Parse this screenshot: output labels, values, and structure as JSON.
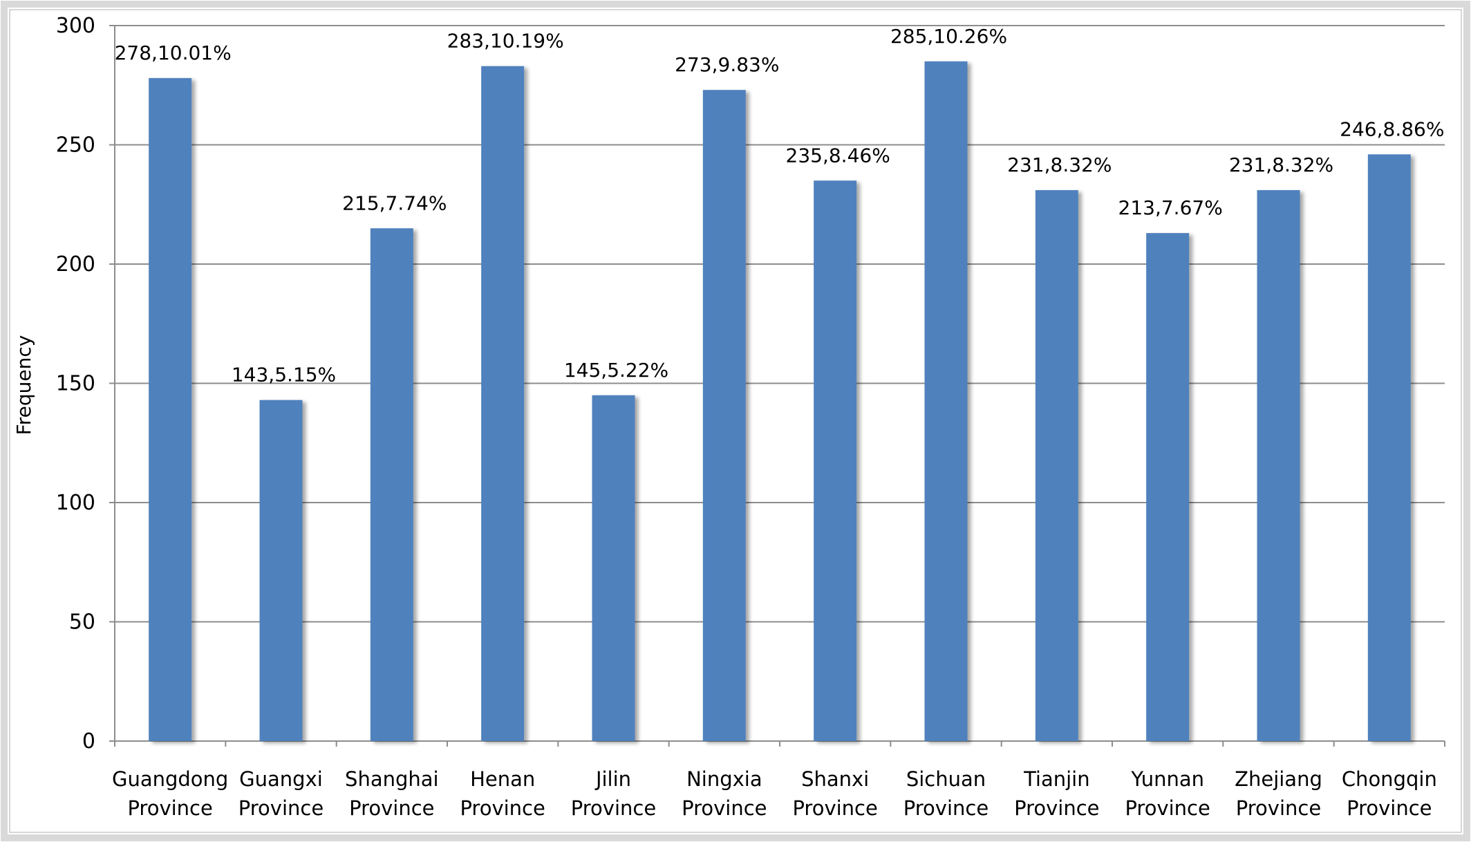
{
  "chart_data": {
    "type": "bar",
    "title": "",
    "xlabel": "",
    "ylabel": "Frequency",
    "ylim": [
      0,
      300
    ],
    "yticks": [
      0,
      50,
      100,
      150,
      200,
      250,
      300
    ],
    "grid": true,
    "legend": "none",
    "bar_color": "#4f81bd",
    "categories": [
      [
        "Guangdong",
        "Province"
      ],
      [
        "Guangxi",
        "Province"
      ],
      [
        "Shanghai",
        "Province"
      ],
      [
        "Henan",
        "Province"
      ],
      [
        "Jilin",
        "Province"
      ],
      [
        "Ningxia",
        "Province"
      ],
      [
        "Shanxi",
        "Province"
      ],
      [
        "Sichuan",
        "Province"
      ],
      [
        "Tianjin",
        "Province"
      ],
      [
        "Yunnan",
        "Province"
      ],
      [
        "Zhejiang",
        "Province"
      ],
      [
        "Chongqin",
        "Province"
      ]
    ],
    "values": [
      278,
      143,
      215,
      283,
      145,
      273,
      235,
      285,
      231,
      213,
      231,
      246
    ],
    "data_labels": [
      "278,10.01%",
      "143,5.15%",
      "215,7.74%",
      "283,10.19%",
      "145,5.22%",
      "273,9.83%",
      "235,8.46%",
      "285,10.26%",
      "231,8.32%",
      "213,7.67%",
      "231,8.32%",
      "246,8.86%"
    ]
  }
}
